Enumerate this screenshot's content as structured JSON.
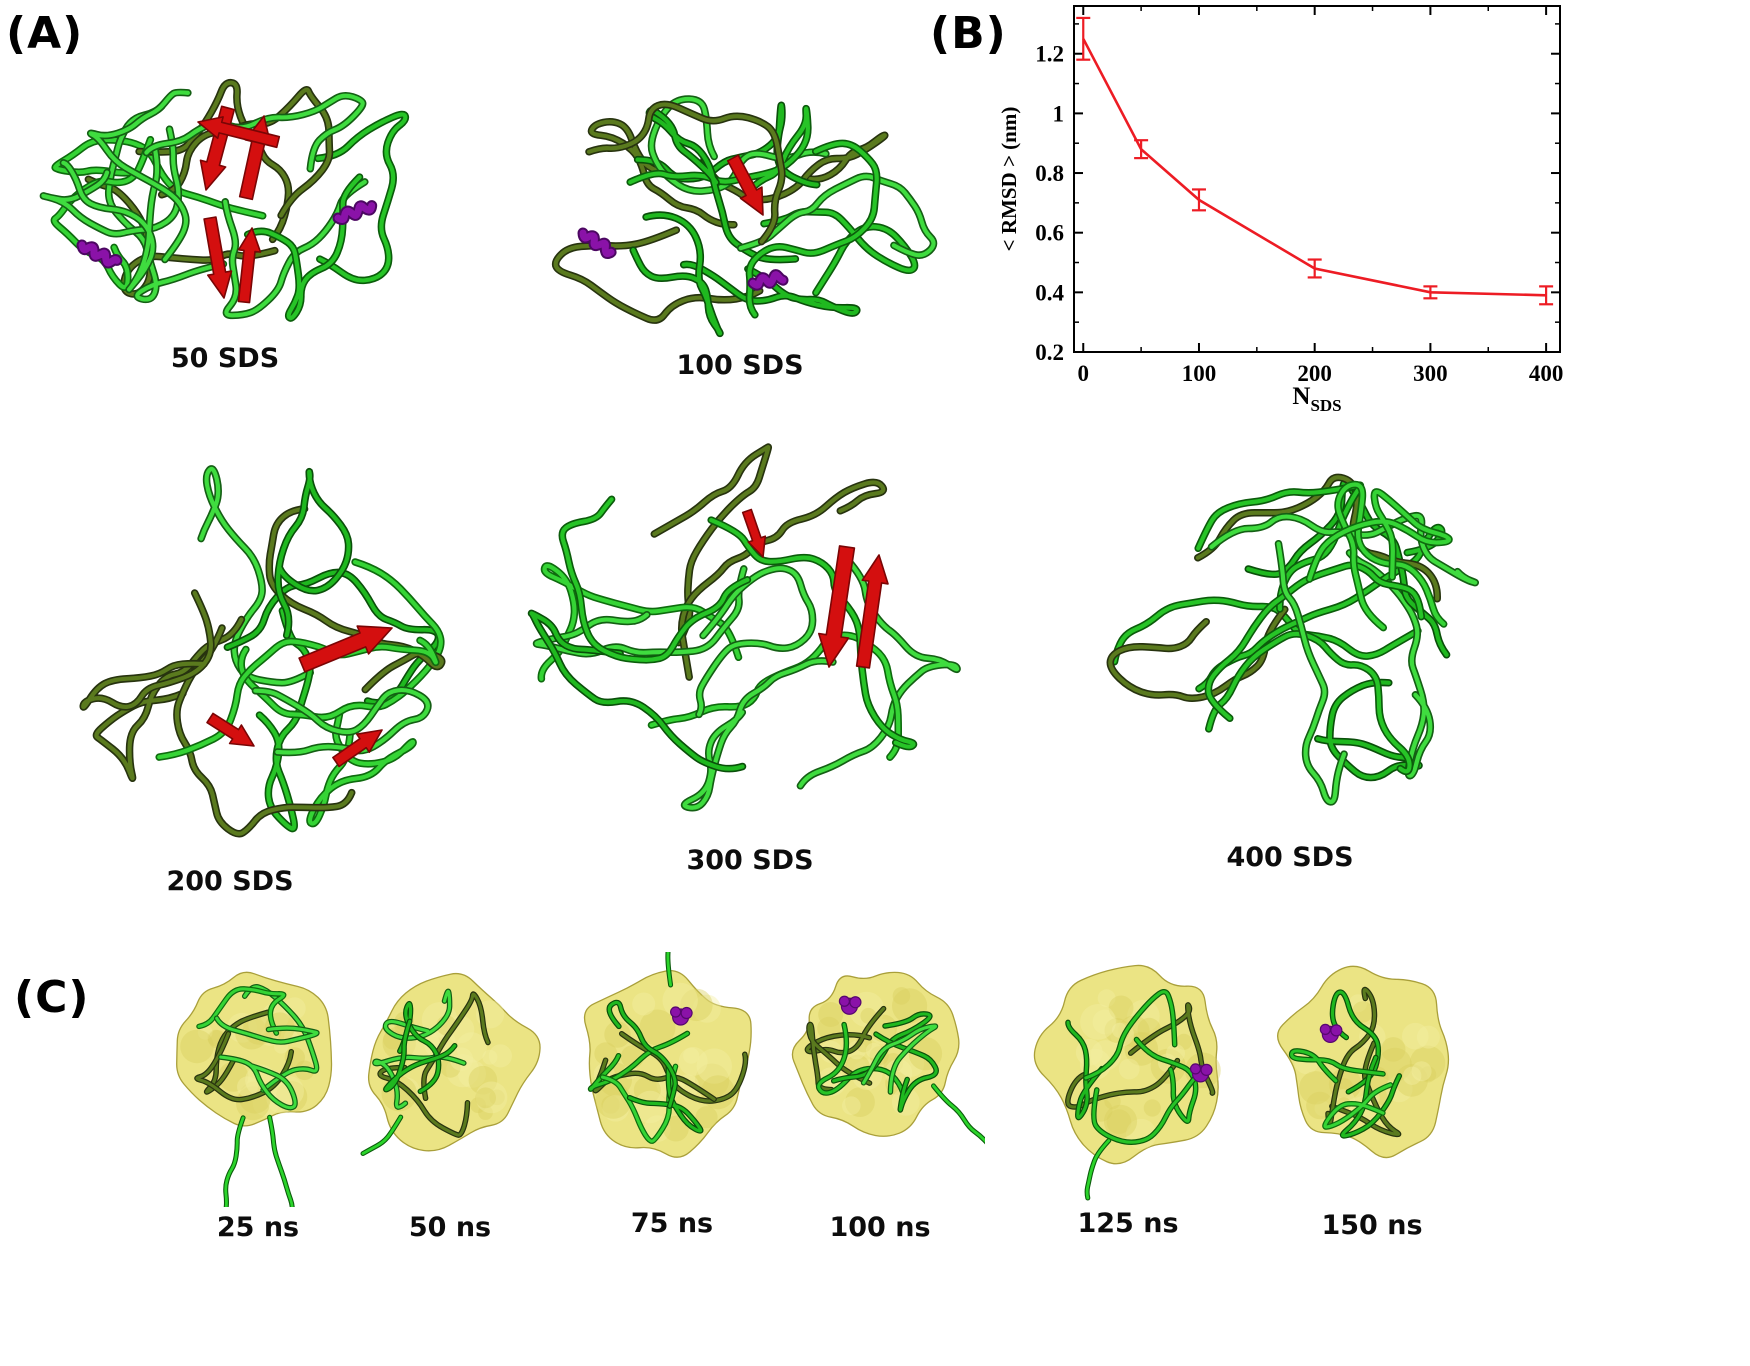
{
  "figure": {
    "panel_a": {
      "label": "(A)",
      "structures": [
        {
          "label": "50 SDS"
        },
        {
          "label": "100 SDS"
        },
        {
          "label": "200 SDS"
        },
        {
          "label": "300 SDS"
        },
        {
          "label": "400 SDS"
        }
      ]
    },
    "panel_b": {
      "label": "(B)"
    },
    "panel_c": {
      "label": "(C)",
      "frames": [
        {
          "label": "25 ns"
        },
        {
          "label": "50 ns"
        },
        {
          "label": "75 ns"
        },
        {
          "label": "100 ns"
        },
        {
          "label": "125 ns"
        },
        {
          "label": "150 ns"
        }
      ]
    }
  },
  "chart_data": {
    "type": "line",
    "x": [
      0,
      50,
      100,
      200,
      300,
      400
    ],
    "y": [
      1.25,
      0.88,
      0.71,
      0.48,
      0.4,
      0.39
    ],
    "y_err": [
      0.07,
      0.03,
      0.035,
      0.03,
      0.02,
      0.03
    ],
    "xlabel_main": "N",
    "xlabel_sub": "SDS",
    "ylabel": "< RMSD > (nm)",
    "xlim": [
      -8,
      412
    ],
    "ylim": [
      0.2,
      1.36
    ],
    "xticks": [
      0,
      100,
      200,
      300,
      400
    ],
    "yticks": [
      0.2,
      0.4,
      0.6,
      0.8,
      1,
      1.2
    ],
    "grid": false,
    "legend": null,
    "line_color": "#ed1c24"
  },
  "colors": {
    "backbone_green": "#2bd42b",
    "beta_sheet_red": "#d40f0f",
    "helix_purple": "#8a12a8",
    "micelle_yellow": "#e9e27b",
    "chart_line_red": "#ed1c24"
  }
}
